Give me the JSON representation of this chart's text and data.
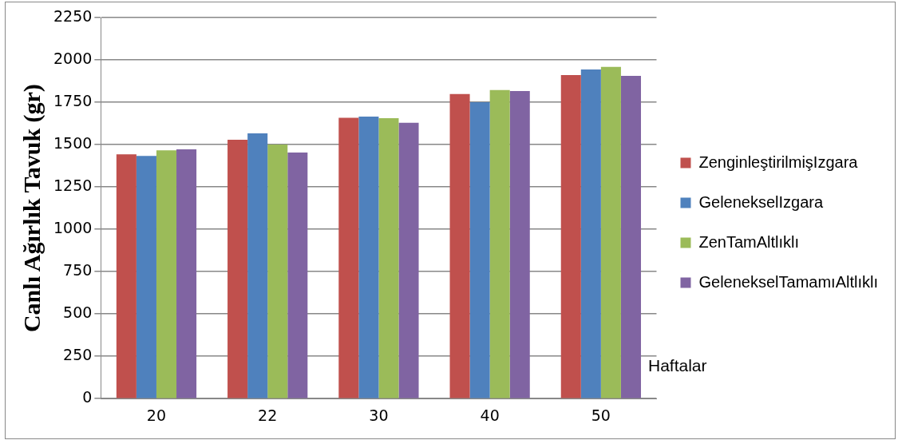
{
  "chart_data": {
    "type": "bar",
    "ylabel": "Canlı Ağırlık Tavuk (gr)",
    "xlabel": "Haftalar",
    "categories": [
      "20",
      "22",
      "30",
      "40",
      "50"
    ],
    "series": [
      {
        "name": "ZenginleştirilmişIzgara",
        "color": "#c0504d",
        "values": [
          1443,
          1529,
          1658,
          1798,
          1911
        ]
      },
      {
        "name": "GelenekselIzgara",
        "color": "#4f81bd",
        "values": [
          1433,
          1566,
          1665,
          1750,
          1944
        ]
      },
      {
        "name": "ZenTamAltlıklı",
        "color": "#9bbb59",
        "values": [
          1466,
          1500,
          1656,
          1822,
          1959
        ]
      },
      {
        "name": "GelenekselTamamıAltlıklı",
        "color": "#8064a2",
        "values": [
          1472,
          1453,
          1629,
          1816,
          1906
        ]
      }
    ],
    "ylim": [
      0,
      2250
    ],
    "yticks": [
      0,
      250,
      500,
      750,
      1000,
      1250,
      1500,
      1750,
      2000,
      2250
    ],
    "grid": "y",
    "legend": "right"
  }
}
